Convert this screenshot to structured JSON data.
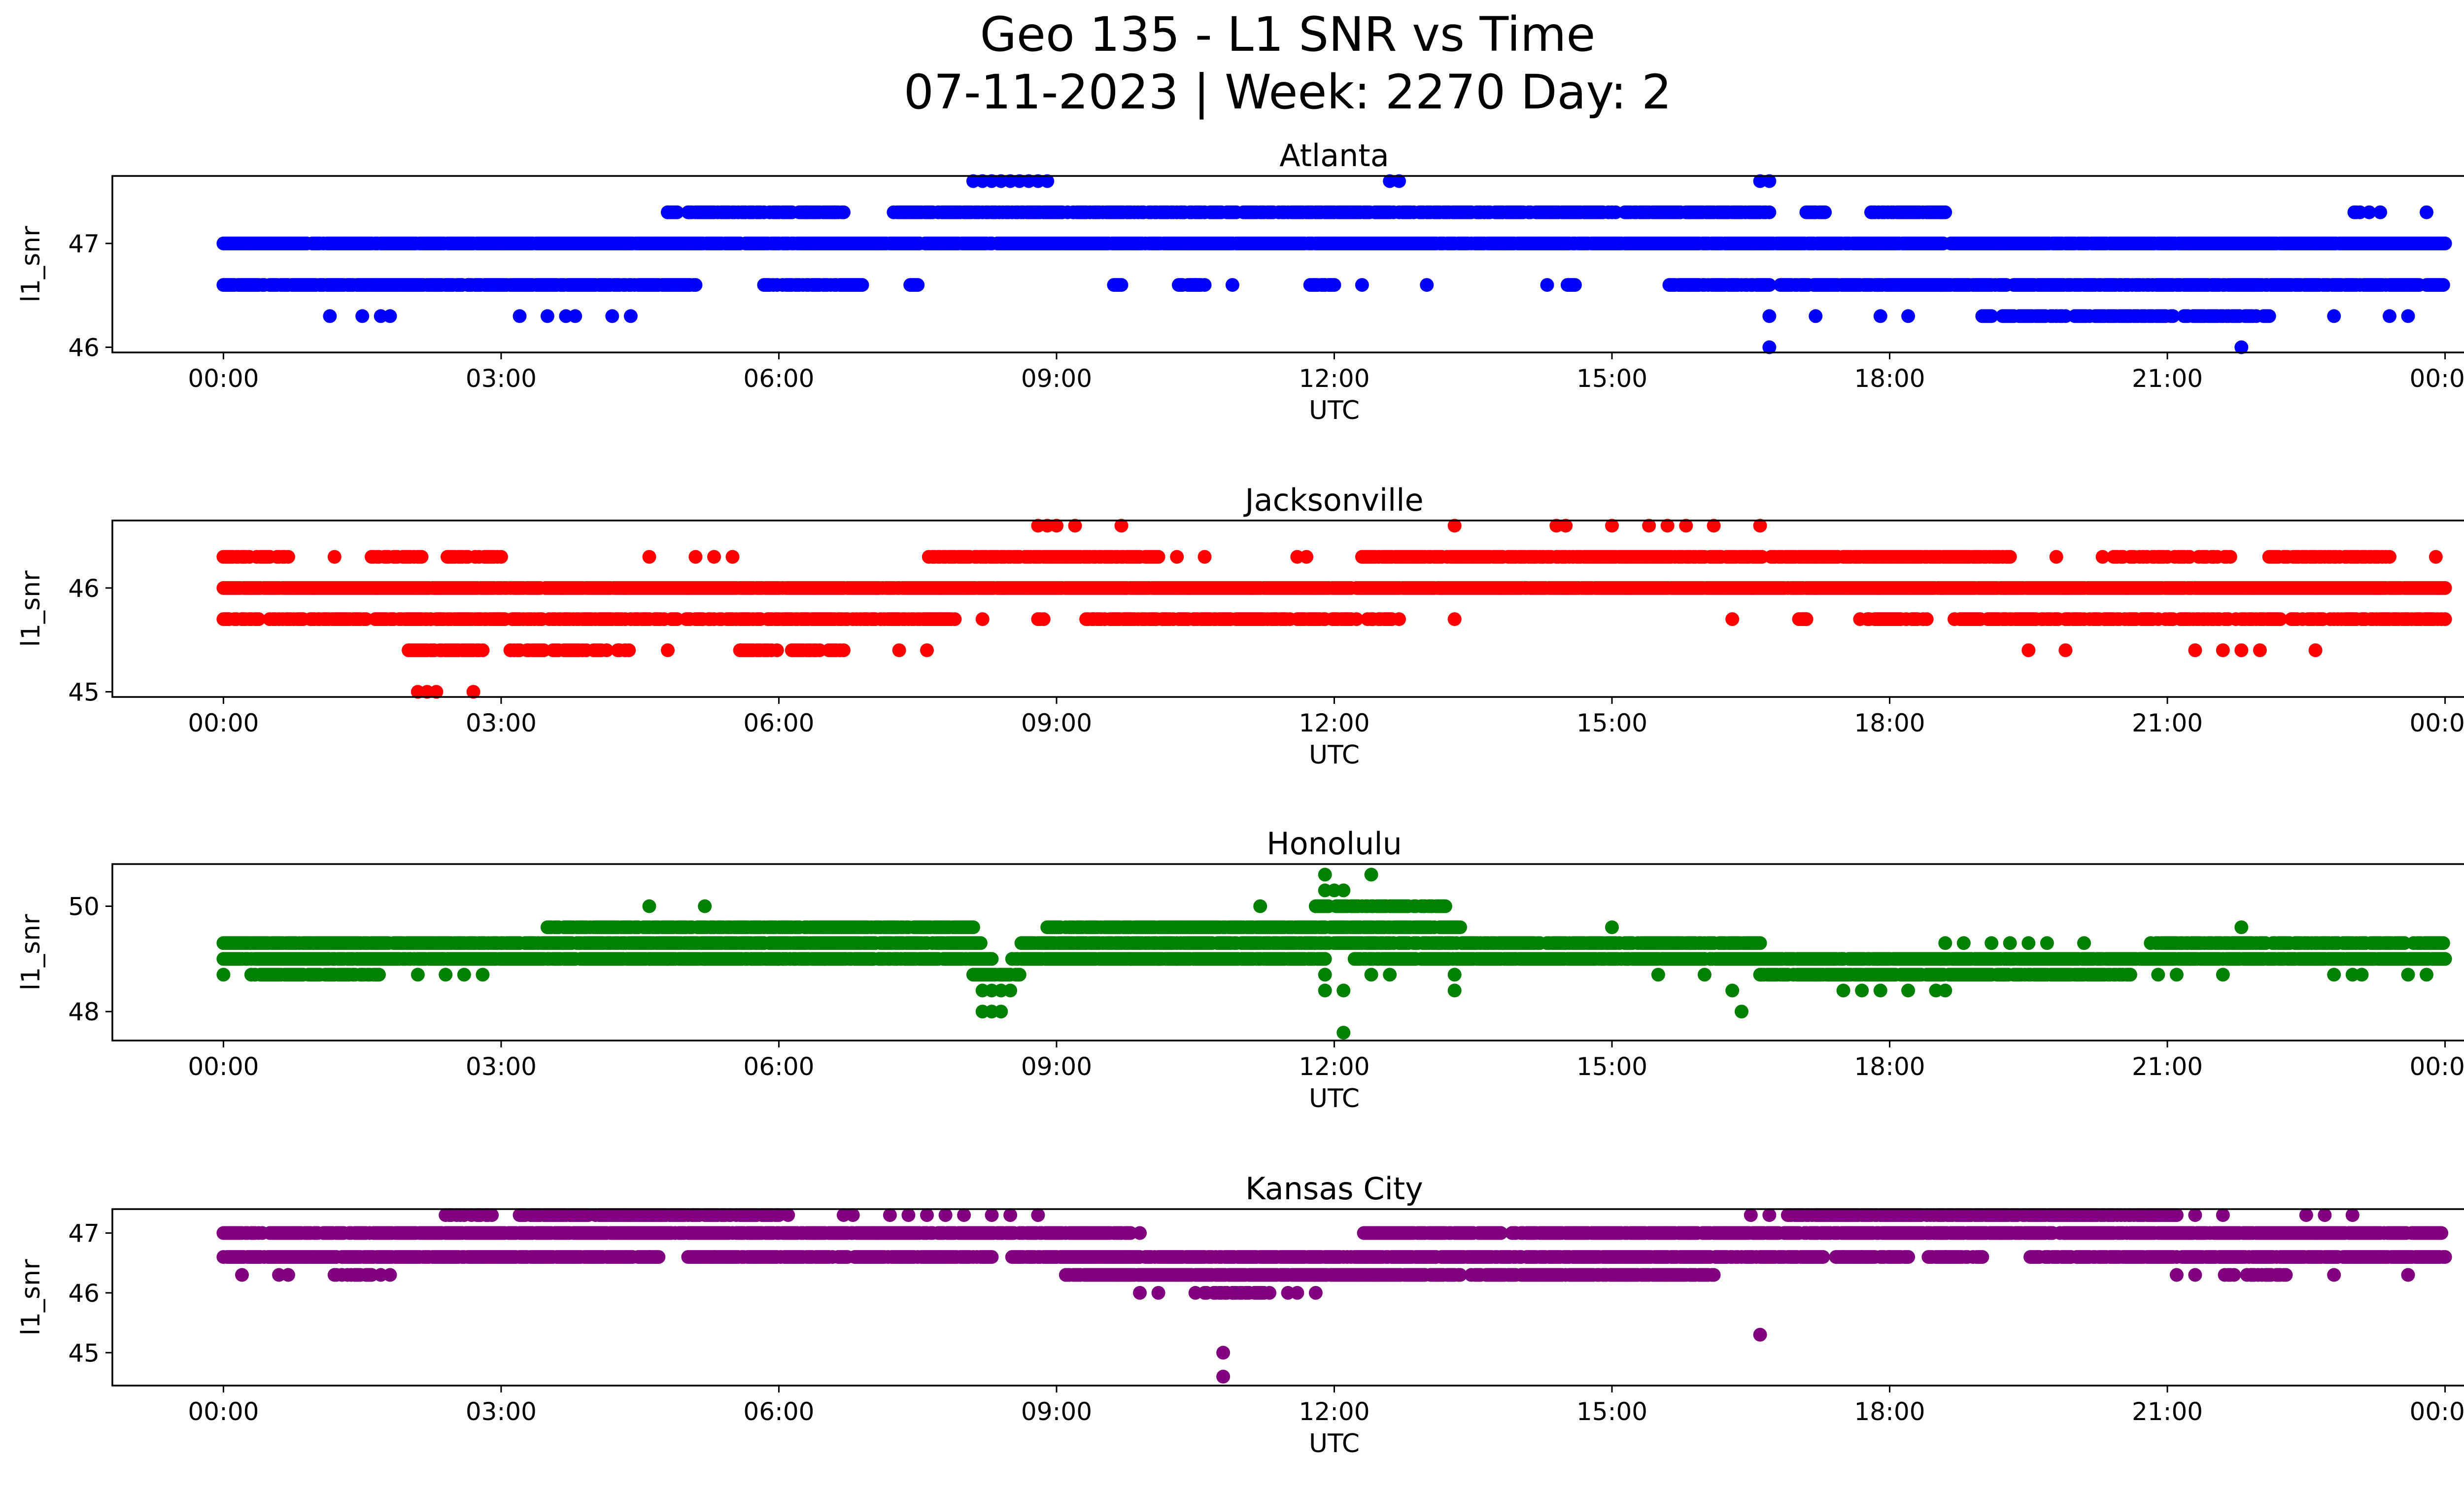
{
  "figure": {
    "title_line1": "Geo 135 - L1 SNR vs Time",
    "title_line2": "07-11-2023 | Week: 2270 Day: 2"
  },
  "chart_data": [
    {
      "type": "scatter",
      "title": "Atlanta",
      "xlabel": "UTC",
      "ylabel": "l1_snr",
      "color": "#0000ff",
      "x_unit": "hours UTC",
      "xlim": [
        -1.2,
        25.2
      ],
      "ylim": [
        45.95,
        47.65
      ],
      "x_ticks": [
        "00:00",
        "03:00",
        "06:00",
        "09:00",
        "12:00",
        "15:00",
        "18:00",
        "21:00",
        "00:00"
      ],
      "y_ticks": [
        46,
        47
      ],
      "bands": [
        {
          "y": 47.0,
          "from": 0.0,
          "to": 24.0,
          "density": 0.95,
          "gaps": []
        },
        {
          "y": 46.6,
          "from": 0.0,
          "to": 24.0,
          "density": 0.85,
          "gaps": [
            [
              5.1,
              5.8
            ],
            [
              6.9,
              7.4
            ],
            [
              7.5,
              9.6
            ],
            [
              9.7,
              10.3
            ],
            [
              10.6,
              11.7
            ],
            [
              12.0,
              14.5
            ],
            [
              14.6,
              15.6
            ],
            [
              16.7,
              16.8
            ]
          ]
        },
        {
          "y": 47.3,
          "from": 4.8,
          "to": 18.6,
          "density": 0.75,
          "gaps": [
            [
              4.9,
              5.0
            ],
            [
              6.7,
              7.2
            ],
            [
              16.7,
              17.1
            ],
            [
              17.3,
              17.8
            ]
          ]
        },
        {
          "y": 47.3,
          "from": 23.0,
          "to": 23.2,
          "density": 0.6,
          "gaps": []
        },
        {
          "y": 46.3,
          "from": 19.0,
          "to": 22.1,
          "density": 0.75,
          "gaps": []
        }
      ],
      "points": [
        [
          8.1,
          47.6
        ],
        [
          8.2,
          47.6
        ],
        [
          8.3,
          47.6
        ],
        [
          8.4,
          47.6
        ],
        [
          8.5,
          47.6
        ],
        [
          8.6,
          47.6
        ],
        [
          8.7,
          47.6
        ],
        [
          8.8,
          47.6
        ],
        [
          8.9,
          47.6
        ],
        [
          12.6,
          47.6
        ],
        [
          12.7,
          47.6
        ],
        [
          16.6,
          47.6
        ],
        [
          16.7,
          47.6
        ],
        [
          4.8,
          47.3
        ],
        [
          6.3,
          47.3
        ],
        [
          6.6,
          47.3
        ],
        [
          17.1,
          47.3
        ],
        [
          17.8,
          47.3
        ],
        [
          23.3,
          47.3
        ],
        [
          23.8,
          47.3
        ],
        [
          1.15,
          46.3
        ],
        [
          1.5,
          46.3
        ],
        [
          1.7,
          46.3
        ],
        [
          1.8,
          46.3
        ],
        [
          3.2,
          46.3
        ],
        [
          3.5,
          46.3
        ],
        [
          3.7,
          46.3
        ],
        [
          3.8,
          46.3
        ],
        [
          4.2,
          46.3
        ],
        [
          4.4,
          46.3
        ],
        [
          16.7,
          46.3
        ],
        [
          17.2,
          46.3
        ],
        [
          17.9,
          46.3
        ],
        [
          18.2,
          46.3
        ],
        [
          22.8,
          46.3
        ],
        [
          23.4,
          46.3
        ],
        [
          23.6,
          46.3
        ],
        [
          10.5,
          46.6
        ],
        [
          10.9,
          46.6
        ],
        [
          11.9,
          46.6
        ],
        [
          12.3,
          46.6
        ],
        [
          13.0,
          46.6
        ],
        [
          14.3,
          46.6
        ],
        [
          16.7,
          46.0
        ],
        [
          21.8,
          46.0
        ]
      ]
    },
    {
      "type": "scatter",
      "title": "Jacksonville",
      "xlabel": "UTC",
      "ylabel": "l1_snr",
      "color": "#ff0000",
      "x_unit": "hours UTC",
      "xlim": [
        -1.2,
        25.2
      ],
      "ylim": [
        44.95,
        46.65
      ],
      "x_ticks": [
        "00:00",
        "03:00",
        "06:00",
        "09:00",
        "12:00",
        "15:00",
        "18:00",
        "21:00",
        "00:00"
      ],
      "y_ticks": [
        45,
        46
      ],
      "bands": [
        {
          "y": 46.0,
          "from": 0.0,
          "to": 24.0,
          "density": 0.95,
          "gaps": []
        },
        {
          "y": 45.7,
          "from": 0.0,
          "to": 24.0,
          "density": 0.7,
          "gaps": [
            [
              0.4,
              0.5
            ],
            [
              7.9,
              8.8
            ],
            [
              8.9,
              9.3
            ],
            [
              12.7,
              17.0
            ],
            [
              17.1,
              17.6
            ],
            [
              18.4,
              18.6
            ]
          ]
        },
        {
          "y": 46.3,
          "from": 0.0,
          "to": 0.7,
          "density": 0.7,
          "gaps": []
        },
        {
          "y": 46.3,
          "from": 1.6,
          "to": 3.0,
          "density": 0.6,
          "gaps": [
            [
              2.2,
              2.4
            ]
          ]
        },
        {
          "y": 46.3,
          "from": 7.6,
          "to": 10.1,
          "density": 0.8,
          "gaps": []
        },
        {
          "y": 46.3,
          "from": 12.3,
          "to": 19.3,
          "density": 0.85,
          "gaps": []
        },
        {
          "y": 46.3,
          "from": 20.3,
          "to": 21.7,
          "density": 0.6,
          "gaps": []
        },
        {
          "y": 46.3,
          "from": 22.1,
          "to": 23.4,
          "density": 0.7,
          "gaps": []
        },
        {
          "y": 45.4,
          "from": 2.0,
          "to": 2.8,
          "density": 0.7,
          "gaps": []
        },
        {
          "y": 45.4,
          "from": 3.1,
          "to": 4.4,
          "density": 0.6,
          "gaps": []
        },
        {
          "y": 45.4,
          "from": 5.5,
          "to": 6.7,
          "density": 0.55,
          "gaps": [
            [
              6.0,
              6.1
            ]
          ]
        }
      ],
      "points": [
        [
          1.2,
          46.3
        ],
        [
          4.6,
          46.3
        ],
        [
          5.1,
          46.3
        ],
        [
          5.3,
          46.3
        ],
        [
          5.5,
          46.3
        ],
        [
          10.3,
          46.3
        ],
        [
          10.6,
          46.3
        ],
        [
          11.6,
          46.3
        ],
        [
          11.7,
          46.3
        ],
        [
          19.8,
          46.3
        ],
        [
          21.5,
          46.3
        ],
        [
          23.9,
          46.3
        ],
        [
          8.8,
          46.6
        ],
        [
          8.9,
          46.6
        ],
        [
          9.0,
          46.6
        ],
        [
          9.2,
          46.6
        ],
        [
          9.7,
          46.6
        ],
        [
          13.3,
          46.6
        ],
        [
          14.4,
          46.6
        ],
        [
          14.5,
          46.6
        ],
        [
          15.0,
          46.6
        ],
        [
          15.4,
          46.6
        ],
        [
          15.6,
          46.6
        ],
        [
          15.8,
          46.6
        ],
        [
          16.1,
          46.6
        ],
        [
          16.6,
          46.6
        ],
        [
          0.2,
          45.7
        ],
        [
          8.2,
          45.7
        ],
        [
          8.8,
          45.7
        ],
        [
          9.4,
          45.7
        ],
        [
          13.3,
          45.7
        ],
        [
          16.3,
          45.7
        ],
        [
          17.1,
          45.7
        ],
        [
          4.8,
          45.4
        ],
        [
          7.3,
          45.4
        ],
        [
          7.6,
          45.4
        ],
        [
          19.5,
          45.4
        ],
        [
          19.9,
          45.4
        ],
        [
          21.3,
          45.4
        ],
        [
          21.6,
          45.4
        ],
        [
          21.8,
          45.4
        ],
        [
          22.0,
          45.4
        ],
        [
          22.6,
          45.4
        ],
        [
          2.1,
          45.0
        ],
        [
          2.2,
          45.0
        ],
        [
          2.3,
          45.0
        ],
        [
          2.7,
          45.0
        ]
      ]
    },
    {
      "type": "scatter",
      "title": "Honolulu",
      "xlabel": "UTC",
      "ylabel": "l1_snr",
      "color": "#008000",
      "x_unit": "hours UTC",
      "xlim": [
        -1.2,
        25.2
      ],
      "ylim": [
        47.45,
        50.8
      ],
      "x_ticks": [
        "00:00",
        "03:00",
        "06:00",
        "09:00",
        "12:00",
        "15:00",
        "18:00",
        "21:00",
        "00:00"
      ],
      "y_ticks": [
        48,
        50
      ],
      "bands": [
        {
          "y": 49.0,
          "from": 0.0,
          "to": 24.0,
          "density": 0.9,
          "gaps": [
            [
              8.3,
              8.5
            ],
            [
              11.9,
              12.2
            ]
          ]
        },
        {
          "y": 49.3,
          "from": 0.0,
          "to": 16.6,
          "density": 0.85,
          "gaps": [
            [
              8.2,
              8.6
            ]
          ]
        },
        {
          "y": 49.3,
          "from": 20.8,
          "to": 24.0,
          "density": 0.8,
          "gaps": []
        },
        {
          "y": 49.6,
          "from": 3.5,
          "to": 8.1,
          "density": 0.85,
          "gaps": []
        },
        {
          "y": 49.6,
          "from": 8.9,
          "to": 13.4,
          "density": 0.85,
          "gaps": []
        },
        {
          "y": 48.7,
          "from": 16.6,
          "to": 20.6,
          "density": 0.85,
          "gaps": []
        },
        {
          "y": 48.7,
          "from": 0.3,
          "to": 1.7,
          "density": 0.7,
          "gaps": []
        },
        {
          "y": 48.7,
          "from": 8.1,
          "to": 8.6,
          "density": 0.7,
          "gaps": []
        },
        {
          "y": 50.0,
          "from": 11.8,
          "to": 13.2,
          "density": 0.8,
          "gaps": []
        }
      ],
      "points": [
        [
          0.0,
          48.7
        ],
        [
          2.1,
          48.7
        ],
        [
          2.4,
          48.7
        ],
        [
          2.6,
          48.7
        ],
        [
          2.8,
          48.7
        ],
        [
          11.9,
          48.7
        ],
        [
          12.4,
          48.7
        ],
        [
          12.6,
          48.7
        ],
        [
          13.3,
          48.7
        ],
        [
          15.5,
          48.7
        ],
        [
          16.0,
          48.7
        ],
        [
          20.9,
          48.7
        ],
        [
          21.1,
          48.7
        ],
        [
          21.6,
          48.7
        ],
        [
          22.8,
          48.7
        ],
        [
          23.0,
          48.7
        ],
        [
          23.1,
          48.7
        ],
        [
          23.6,
          48.7
        ],
        [
          23.8,
          48.7
        ],
        [
          4.6,
          49.0
        ],
        [
          4.8,
          49.0
        ],
        [
          5.2,
          49.0
        ],
        [
          5.4,
          49.0
        ],
        [
          6.0,
          49.0
        ],
        [
          6.5,
          49.0
        ],
        [
          6.7,
          49.0
        ],
        [
          7.0,
          49.0
        ],
        [
          9.8,
          49.0
        ],
        [
          10.1,
          49.0
        ],
        [
          10.3,
          49.0
        ],
        [
          8.2,
          48.4
        ],
        [
          8.3,
          48.4
        ],
        [
          8.4,
          48.4
        ],
        [
          8.5,
          48.4
        ],
        [
          11.9,
          48.4
        ],
        [
          12.1,
          48.4
        ],
        [
          13.3,
          48.4
        ],
        [
          16.3,
          48.4
        ],
        [
          17.5,
          48.4
        ],
        [
          17.7,
          48.4
        ],
        [
          17.9,
          48.4
        ],
        [
          18.2,
          48.4
        ],
        [
          18.5,
          48.4
        ],
        [
          18.6,
          48.4
        ],
        [
          8.2,
          48.0
        ],
        [
          8.3,
          48.0
        ],
        [
          8.4,
          48.0
        ],
        [
          16.4,
          48.0
        ],
        [
          12.1,
          47.6
        ],
        [
          4.6,
          50.0
        ],
        [
          5.2,
          50.0
        ],
        [
          11.2,
          50.0
        ],
        [
          9.6,
          49.6
        ],
        [
          15.0,
          49.6
        ],
        [
          21.8,
          49.6
        ],
        [
          18.6,
          49.3
        ],
        [
          18.8,
          49.3
        ],
        [
          19.1,
          49.3
        ],
        [
          19.3,
          49.3
        ],
        [
          19.5,
          49.3
        ],
        [
          19.7,
          49.3
        ],
        [
          20.1,
          49.3
        ],
        [
          11.9,
          50.3
        ],
        [
          12.0,
          50.3
        ],
        [
          12.1,
          50.3
        ],
        [
          11.9,
          50.6
        ],
        [
          12.4,
          50.6
        ]
      ]
    },
    {
      "type": "scatter",
      "title": "Kansas City",
      "xlabel": "UTC",
      "ylabel": "l1_snr",
      "color": "#800080",
      "x_unit": "hours UTC",
      "xlim": [
        -1.2,
        25.2
      ],
      "ylim": [
        44.45,
        47.4
      ],
      "x_ticks": [
        "00:00",
        "03:00",
        "06:00",
        "09:00",
        "12:00",
        "15:00",
        "18:00",
        "21:00",
        "00:00"
      ],
      "y_ticks": [
        45,
        46,
        47
      ],
      "bands": [
        {
          "y": 47.0,
          "from": 0.0,
          "to": 24.0,
          "density": 0.9,
          "gaps": [
            [
              9.8,
              12.3
            ],
            [
              13.8,
              13.9
            ]
          ]
        },
        {
          "y": 46.6,
          "from": 0.0,
          "to": 24.0,
          "density": 0.9,
          "gaps": [
            [
              4.7,
              5.0
            ],
            [
              8.3,
              8.5
            ],
            [
              9.9,
              9.95
            ],
            [
              17.3,
              17.4
            ],
            [
              18.2,
              18.4
            ],
            [
              19.0,
              19.5
            ]
          ]
        },
        {
          "y": 46.3,
          "from": 9.1,
          "to": 16.1,
          "density": 0.9,
          "gaps": []
        },
        {
          "y": 47.3,
          "from": 3.2,
          "to": 6.0,
          "density": 0.85,
          "gaps": []
        },
        {
          "y": 47.3,
          "from": 16.9,
          "to": 21.1,
          "density": 0.85,
          "gaps": []
        },
        {
          "y": 47.3,
          "from": 2.4,
          "to": 2.9,
          "density": 0.6,
          "gaps": []
        },
        {
          "y": 46.3,
          "from": 1.2,
          "to": 1.6,
          "density": 0.7,
          "gaps": []
        },
        {
          "y": 46.3,
          "from": 21.6,
          "to": 22.3,
          "density": 0.6,
          "gaps": []
        },
        {
          "y": 46.0,
          "from": 10.6,
          "to": 11.3,
          "density": 0.7,
          "gaps": []
        }
      ],
      "points": [
        [
          0.2,
          46.3
        ],
        [
          0.6,
          46.3
        ],
        [
          0.7,
          46.3
        ],
        [
          1.7,
          46.3
        ],
        [
          1.8,
          46.3
        ],
        [
          21.1,
          46.3
        ],
        [
          21.3,
          46.3
        ],
        [
          22.8,
          46.3
        ],
        [
          23.6,
          46.3
        ],
        [
          6.1,
          47.3
        ],
        [
          6.7,
          47.3
        ],
        [
          6.8,
          47.3
        ],
        [
          7.2,
          47.3
        ],
        [
          7.4,
          47.3
        ],
        [
          7.6,
          47.3
        ],
        [
          7.8,
          47.3
        ],
        [
          8.0,
          47.3
        ],
        [
          8.3,
          47.3
        ],
        [
          8.5,
          47.3
        ],
        [
          8.8,
          47.3
        ],
        [
          16.5,
          47.3
        ],
        [
          16.7,
          47.3
        ],
        [
          21.3,
          47.3
        ],
        [
          21.6,
          47.3
        ],
        [
          22.5,
          47.3
        ],
        [
          22.7,
          47.3
        ],
        [
          23.0,
          47.3
        ],
        [
          9.7,
          47.0
        ],
        [
          9.9,
          47.0
        ],
        [
          4.6,
          46.6
        ],
        [
          5.3,
          46.6
        ],
        [
          17.5,
          46.6
        ],
        [
          17.7,
          46.6
        ],
        [
          18.0,
          46.6
        ],
        [
          18.6,
          46.6
        ],
        [
          18.9,
          46.6
        ],
        [
          19.6,
          46.6
        ],
        [
          9.9,
          46.0
        ],
        [
          10.1,
          46.0
        ],
        [
          10.5,
          46.0
        ],
        [
          11.5,
          46.0
        ],
        [
          11.6,
          46.0
        ],
        [
          11.8,
          46.0
        ],
        [
          10.8,
          45.0
        ],
        [
          10.8,
          44.6
        ],
        [
          16.6,
          45.3
        ]
      ]
    }
  ]
}
